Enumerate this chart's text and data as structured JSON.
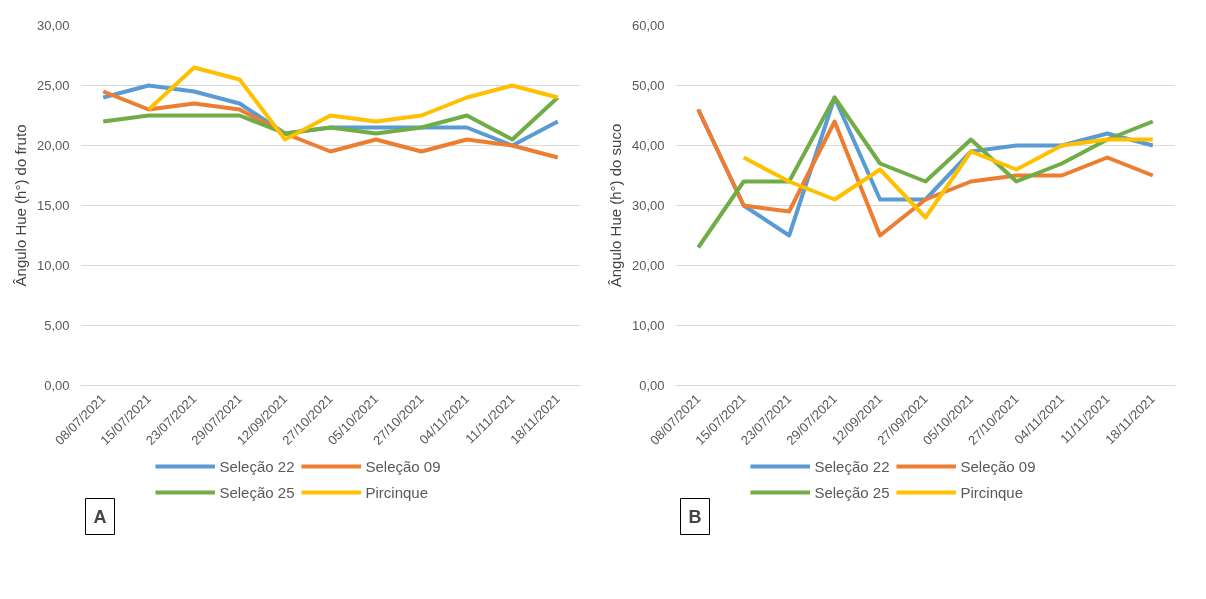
{
  "chart_data": [
    {
      "type": "line",
      "ylabel": "Ângulo Hue (h°) do fruto",
      "categories": [
        "08/07/2021",
        "15/07/2021",
        "23/07/2021",
        "29/07/2021",
        "12/09/2021",
        "27/10/2021",
        "05/10/2021",
        "27/10/2021",
        "04/11/2021",
        "11/11/2021",
        "18/11/2021"
      ],
      "ylim": [
        0,
        30
      ],
      "yticks": [
        {
          "value": 0,
          "label": "0,00"
        },
        {
          "value": 5,
          "label": "5,00"
        },
        {
          "value": 10,
          "label": "10,00"
        },
        {
          "value": 15,
          "label": "15,00"
        },
        {
          "value": 20,
          "label": "20,00"
        },
        {
          "value": 25,
          "label": "25,00"
        },
        {
          "value": 30,
          "label": "30,00"
        }
      ],
      "grid": "y",
      "legend": "bottom",
      "marker": "none",
      "line_style": "solid",
      "annotations": [
        "A"
      ],
      "series": [
        {
          "name": "Seleção 22",
          "color": "#5b9bd5",
          "values": [
            24,
            25,
            24.5,
            23.5,
            21,
            21.5,
            21.5,
            21.5,
            21.5,
            20,
            22
          ]
        },
        {
          "name": "Seleção 09",
          "color": "#ed7d31",
          "values": [
            24.5,
            23,
            23.5,
            23,
            21,
            19.5,
            20.5,
            19.5,
            20.5,
            20,
            19
          ]
        },
        {
          "name": "Seleção 25",
          "color": "#70ad47",
          "values": [
            22,
            22.5,
            22.5,
            22.5,
            21,
            21.5,
            21,
            21.5,
            22.5,
            20.5,
            24
          ]
        },
        {
          "name": "Pircinque",
          "color": "#ffc000",
          "values": [
            null,
            23,
            26.5,
            25.5,
            20.5,
            22.5,
            22,
            22.5,
            24,
            25,
            24
          ]
        }
      ]
    },
    {
      "type": "line",
      "ylabel": "Ângulo Hue (h°) do suco",
      "categories": [
        "08/07/2021",
        "15/07/2021",
        "23/07/2021",
        "29/07/2021",
        "12/09/2021",
        "27/09/2021",
        "05/10/2021",
        "27/10/2021",
        "04/11/2021",
        "11/11/2021",
        "18/11/2021"
      ],
      "ylim": [
        0,
        60
      ],
      "yticks": [
        {
          "value": 0,
          "label": "0,00"
        },
        {
          "value": 10,
          "label": "10,00"
        },
        {
          "value": 20,
          "label": "20,00"
        },
        {
          "value": 30,
          "label": "30,00"
        },
        {
          "value": 40,
          "label": "40,00"
        },
        {
          "value": 50,
          "label": "50,00"
        },
        {
          "value": 60,
          "label": "60,00"
        }
      ],
      "grid": "y",
      "legend": "bottom",
      "marker": "none",
      "line_style": "solid",
      "annotations": [
        "B"
      ],
      "series": [
        {
          "name": "Seleção 22",
          "color": "#5b9bd5",
          "values": [
            46,
            30,
            25,
            48,
            31,
            31,
            39,
            40,
            40,
            42,
            40
          ]
        },
        {
          "name": "Seleção 09",
          "color": "#ed7d31",
          "values": [
            46,
            30,
            29,
            44,
            25,
            31,
            34,
            35,
            35,
            38,
            35
          ]
        },
        {
          "name": "Seleção 25",
          "color": "#70ad47",
          "values": [
            23,
            34,
            34,
            48,
            37,
            34,
            41,
            34,
            37,
            41,
            44
          ]
        },
        {
          "name": "Pircinque",
          "color": "#ffc000",
          "values": [
            null,
            38,
            34,
            31,
            36,
            28,
            39,
            36,
            40,
            41,
            41
          ]
        }
      ]
    }
  ]
}
